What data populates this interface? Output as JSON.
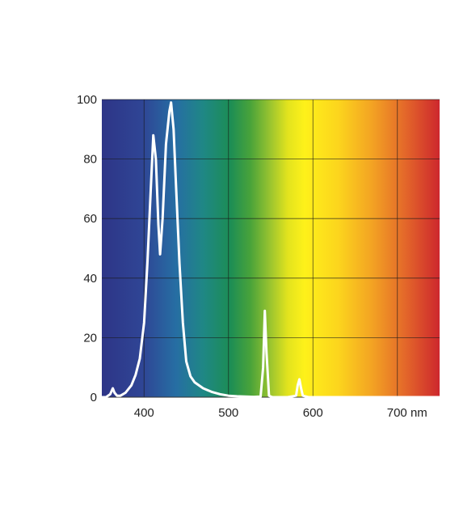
{
  "chart_data": {
    "type": "line",
    "title": "",
    "xlabel": "",
    "ylabel": "",
    "xlim": [
      350,
      750
    ],
    "ylim": [
      0,
      100
    ],
    "x_ticks": [
      {
        "value": 400,
        "label": "400"
      },
      {
        "value": 500,
        "label": "500"
      },
      {
        "value": 600,
        "label": "600"
      },
      {
        "value": 700,
        "label": "700 nm"
      }
    ],
    "y_ticks": [
      {
        "value": 0,
        "label": "0"
      },
      {
        "value": 20,
        "label": "20"
      },
      {
        "value": 40,
        "label": "40"
      },
      {
        "value": 60,
        "label": "60"
      },
      {
        "value": 80,
        "label": "80"
      },
      {
        "value": 100,
        "label": "100"
      }
    ],
    "grid": true,
    "background": "visible spectrum color gradient (violet to red)",
    "series": [
      {
        "color": "#ffffff",
        "x": [
          350,
          355,
          360,
          363,
          365,
          368,
          372,
          378,
          385,
          390,
          395,
          400,
          404,
          408,
          411,
          414,
          417,
          419,
          422,
          426,
          430,
          432,
          435,
          438,
          442,
          446,
          450,
          455,
          460,
          470,
          480,
          490,
          500,
          510,
          520,
          530,
          538,
          541,
          543,
          545,
          548,
          552,
          560,
          570,
          580,
          582,
          584,
          586,
          588,
          595,
          610,
          650,
          700,
          750
        ],
        "y": [
          0,
          0,
          1,
          3,
          1.5,
          0.5,
          0.5,
          1.5,
          4,
          7.5,
          13,
          25,
          45,
          70,
          88,
          80,
          58,
          48,
          60,
          85,
          96,
          99,
          90,
          70,
          45,
          25,
          12,
          7,
          5,
          3,
          1.8,
          1,
          0.5,
          0.3,
          0.2,
          0.1,
          0.2,
          10,
          29,
          15,
          0.5,
          0,
          0,
          0,
          0.5,
          4,
          6,
          3,
          0.5,
          0,
          0,
          0,
          0,
          0
        ]
      }
    ]
  }
}
